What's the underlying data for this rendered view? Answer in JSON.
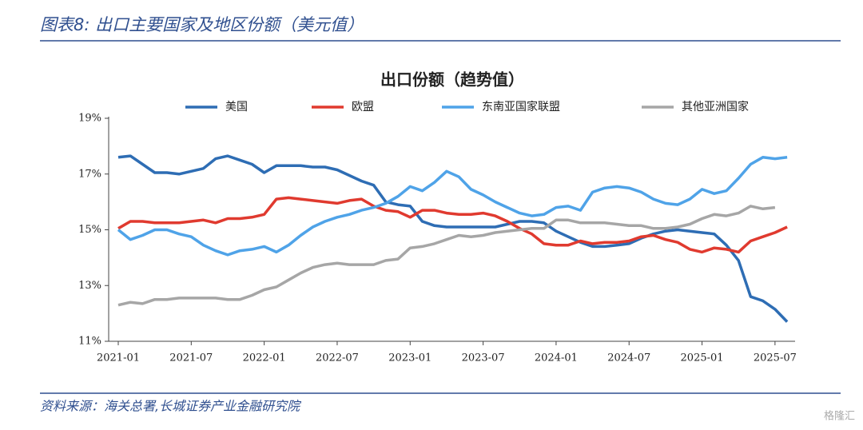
{
  "header": {
    "title": "图表8:  出口主要国家及地区份额（美元值）"
  },
  "chart_data": {
    "type": "line",
    "title": "出口份额（趋势值）",
    "categories": [
      "2021-01",
      null,
      null,
      null,
      null,
      null,
      "2021-07",
      null,
      null,
      null,
      null,
      null,
      "2022-01",
      null,
      null,
      null,
      null,
      null,
      "2022-07",
      null,
      null,
      null,
      null,
      null,
      "2023-01",
      null,
      null,
      null,
      null,
      null,
      "2023-07",
      null,
      null,
      null,
      null,
      null,
      "2024-01",
      null,
      null,
      null,
      null,
      null,
      "2024-07",
      null,
      null,
      null,
      null,
      null,
      "2025-01",
      null,
      null,
      null,
      null,
      null,
      "2025-07",
      null
    ],
    "series": [
      {
        "name": "美国",
        "color": "#2e6db4",
        "values": [
          17.6,
          17.65,
          17.35,
          17.05,
          17.05,
          17.0,
          17.1,
          17.2,
          17.55,
          17.65,
          17.5,
          17.35,
          17.05,
          17.3,
          17.3,
          17.3,
          17.25,
          17.25,
          17.15,
          16.95,
          16.75,
          16.6,
          16.0,
          15.9,
          15.85,
          15.3,
          15.15,
          15.1,
          15.1,
          15.1,
          15.1,
          15.1,
          15.2,
          15.3,
          15.3,
          15.25,
          14.95,
          14.75,
          14.55,
          14.4,
          14.4,
          14.45,
          14.5,
          14.7,
          14.85,
          14.95,
          15.0,
          14.95,
          14.9,
          14.85,
          14.45,
          13.9,
          12.6,
          12.45,
          12.15,
          11.7
        ]
      },
      {
        "name": "欧盟",
        "color": "#e03a2f",
        "values": [
          15.05,
          15.3,
          15.3,
          15.25,
          15.25,
          15.25,
          15.3,
          15.35,
          15.25,
          15.4,
          15.4,
          15.45,
          15.55,
          16.1,
          16.15,
          16.1,
          16.05,
          16.0,
          15.95,
          16.05,
          16.1,
          15.85,
          15.7,
          15.65,
          15.45,
          15.7,
          15.7,
          15.6,
          15.55,
          15.55,
          15.6,
          15.5,
          15.3,
          15.05,
          14.85,
          14.5,
          14.45,
          14.45,
          14.6,
          14.5,
          14.55,
          14.55,
          14.6,
          14.75,
          14.8,
          14.65,
          14.55,
          14.3,
          14.2,
          14.35,
          14.3,
          14.2,
          14.6,
          14.75,
          14.9,
          15.1
        ]
      },
      {
        "name": "东南亚国家联盟",
        "color": "#4fa3e8",
        "values": [
          15.0,
          14.65,
          14.8,
          15.0,
          15.0,
          14.85,
          14.75,
          14.45,
          14.25,
          14.1,
          14.25,
          14.3,
          14.4,
          14.2,
          14.45,
          14.8,
          15.1,
          15.3,
          15.45,
          15.55,
          15.7,
          15.8,
          15.95,
          16.2,
          16.55,
          16.4,
          16.7,
          17.1,
          16.9,
          16.45,
          16.25,
          16.0,
          15.8,
          15.6,
          15.5,
          15.55,
          15.8,
          15.85,
          15.7,
          16.35,
          16.5,
          16.55,
          16.5,
          16.35,
          16.1,
          15.95,
          15.9,
          16.1,
          16.45,
          16.3,
          16.4,
          16.85,
          17.35,
          17.6,
          17.55,
          17.6
        ]
      },
      {
        "name": "其他亚洲国家",
        "color": "#a6a6a6",
        "values": [
          12.3,
          12.4,
          12.35,
          12.5,
          12.5,
          12.55,
          12.55,
          12.55,
          12.55,
          12.5,
          12.5,
          12.65,
          12.85,
          12.95,
          13.2,
          13.45,
          13.65,
          13.75,
          13.8,
          13.75,
          13.75,
          13.75,
          13.9,
          13.95,
          14.35,
          14.4,
          14.5,
          14.65,
          14.8,
          14.75,
          14.8,
          14.9,
          14.95,
          15.0,
          15.05,
          15.05,
          15.35,
          15.35,
          15.25,
          15.25,
          15.25,
          15.2,
          15.15,
          15.15,
          15.05,
          15.05,
          15.1,
          15.2,
          15.4,
          15.55,
          15.5,
          15.6,
          15.85,
          15.75,
          15.8,
          null
        ]
      }
    ],
    "ylim": [
      11,
      19
    ],
    "yticks": [
      {
        "value": 11,
        "label": "11%"
      },
      {
        "value": 13,
        "label": "13%"
      },
      {
        "value": 15,
        "label": "15%"
      },
      {
        "value": 17,
        "label": "17%"
      },
      {
        "value": 19,
        "label": "19%"
      }
    ],
    "grid": false,
    "legend": "top"
  },
  "footer": {
    "source": "资料来源：海关总署,长城证券产业金融研究院"
  },
  "watermark": "格隆汇"
}
